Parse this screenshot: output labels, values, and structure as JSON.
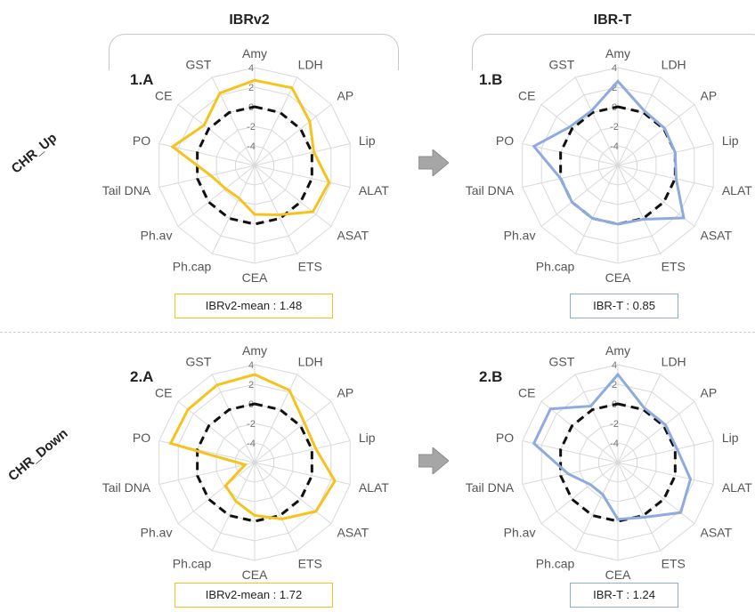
{
  "columns": {
    "left_title": "IBRv2",
    "right_title": "IBR-T"
  },
  "rows": {
    "top_title": "CHR_Up",
    "bottom_title": "CHR_Down"
  },
  "colors": {
    "ibrv2": "#f5c31c",
    "ibrt": "#8faadc",
    "reference": "#111111",
    "grid": "#d9d9d9",
    "label": "#555555"
  },
  "chart_data": [
    {
      "type": "radar",
      "panel_label": "1.A",
      "summary": "IBRv2-mean : 1.48",
      "axes": [
        "Amy",
        "LDH",
        "AP",
        "Lip",
        "ALAT",
        "ASAT",
        "ETS",
        "CEA",
        "Ph.cap",
        "Ph.av",
        "Tail DNA",
        "PO",
        "CE",
        "GST"
      ],
      "tick_labels": [
        "4",
        "2",
        "0",
        "-2",
        "-4"
      ],
      "rlim": [
        -6,
        4
      ],
      "series": [
        {
          "values": [
            2.7,
            2.8,
            1.2,
            0.2,
            1.8,
            1.6,
            -0.4,
            -1.0,
            -2.3,
            -2.2,
            -1.4,
            2.6,
            0.6,
            2.2
          ]
        },
        {
          "values": [
            0,
            0,
            0,
            0,
            0,
            0,
            0,
            0,
            0,
            0,
            0,
            0,
            0,
            0
          ]
        }
      ]
    },
    {
      "type": "radar",
      "panel_label": "1.B",
      "summary": "IBR-T : 0.85",
      "axes": [
        "Amy",
        "LDH",
        "AP",
        "Lip",
        "ALAT",
        "ASAT",
        "ETS",
        "CEA",
        "Ph.cap",
        "Ph.av",
        "Tail DNA",
        "PO",
        "CE",
        "GST"
      ],
      "tick_labels": [
        "4",
        "2",
        "0",
        "-2",
        "-4"
      ],
      "rlim": [
        -6,
        4
      ],
      "series": [
        {
          "values": [
            2.6,
            0.2,
            0.1,
            0.0,
            0.1,
            2.6,
            0.1,
            0.0,
            0.0,
            0.0,
            0.0,
            2.8,
            0.3,
            0.2
          ]
        },
        {
          "values": [
            0,
            0,
            0,
            0,
            0,
            0,
            0,
            0,
            0,
            0,
            0,
            0,
            0,
            0
          ]
        }
      ]
    },
    {
      "type": "radar",
      "panel_label": "2.A",
      "summary": "IBRv2-mean : 1.72",
      "axes": [
        "Amy",
        "LDH",
        "AP",
        "Lip",
        "ALAT",
        "ASAT",
        "ETS",
        "CEA",
        "Ph.cap",
        "Ph.av",
        "Tail DNA",
        "PO",
        "CE",
        "GST"
      ],
      "tick_labels": [
        "4",
        "2",
        "0",
        "-2",
        "-4"
      ],
      "rlim": [
        -6,
        4
      ],
      "series": [
        {
          "values": [
            3.0,
            2.2,
            0.5,
            0.4,
            2.4,
            2.0,
            0.4,
            -0.6,
            -1.6,
            -2.2,
            -5.0,
            2.8,
            2.7,
            2.8
          ]
        },
        {
          "values": [
            0,
            0,
            0,
            0,
            0,
            0,
            0,
            0,
            0,
            0,
            0,
            0,
            0,
            0
          ]
        }
      ]
    },
    {
      "type": "radar",
      "panel_label": "2.B",
      "summary": "IBR-T : 1.24",
      "axes": [
        "Amy",
        "LDH",
        "AP",
        "Lip",
        "ALAT",
        "ASAT",
        "ETS",
        "CEA",
        "Ph.cap",
        "Ph.av",
        "Tail DNA",
        "PO",
        "CE",
        "GST"
      ],
      "tick_labels": [
        "4",
        "2",
        "0",
        "-2",
        "-4"
      ],
      "rlim": [
        -6,
        4
      ],
      "series": [
        {
          "values": [
            3.0,
            0.2,
            0.2,
            0.2,
            1.6,
            2.2,
            0.2,
            -0.2,
            -2.4,
            -2.4,
            -0.8,
            2.8,
            2.8,
            0.4
          ]
        },
        {
          "values": [
            0,
            0,
            0,
            0,
            0,
            0,
            0,
            0,
            0,
            0,
            0,
            0,
            0,
            0
          ]
        }
      ]
    }
  ]
}
